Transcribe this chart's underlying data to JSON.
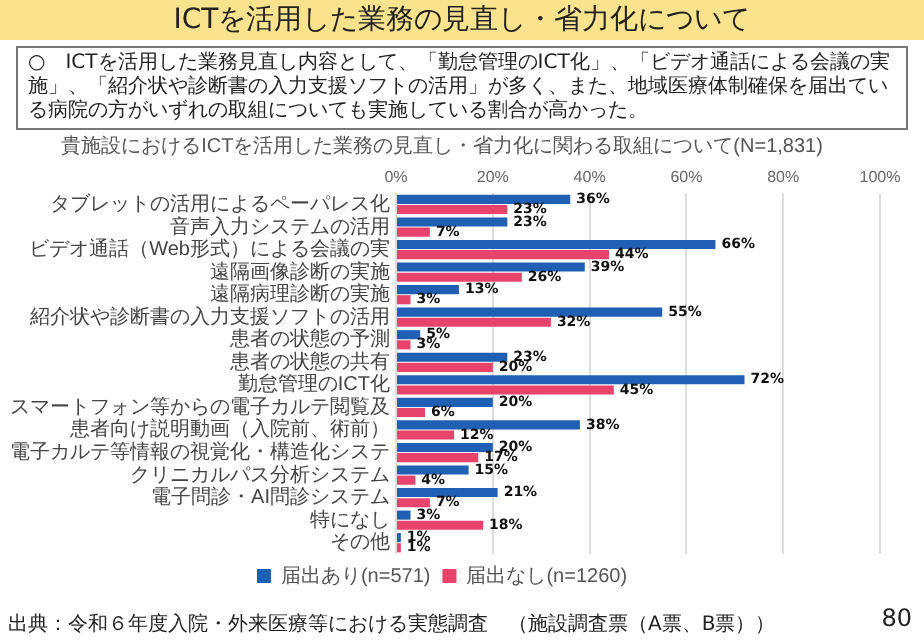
{
  "chart_data": {
    "type": "bar",
    "orientation": "horizontal",
    "title": "ICTを活用した業務の見直し・省力化について",
    "subtitle": "貴施設におけるICTを活用した業務の見直し・省力化に関わる取組について(N=1,831)",
    "categories": [
      "タブレットの活用によるペーパレス化",
      "音声入力システムの活用",
      "ビデオ通話（Web形式）による会議の実",
      "遠隔画像診断の実施",
      "遠隔病理診断の実施",
      "紹介状や診断書の入力支援ソフトの活用",
      "患者の状態の予測",
      "患者の状態の共有",
      "勤怠管理のICT化",
      "スマートフォン等からの電子カルテ閲覧及",
      "患者向け説明動画（入院前、術前）",
      "電子カルテ等情報の視覚化・構造化システ",
      "クリニカルパス分析システム",
      "電子問診・AI問診システム",
      "特になし",
      "その他"
    ],
    "series": [
      {
        "name": "届出あり(n=571)",
        "color": "#1f5fb4",
        "values": [
          36,
          23,
          66,
          39,
          13,
          55,
          5,
          23,
          72,
          20,
          38,
          20,
          15,
          21,
          3,
          1
        ],
        "value_labels": [
          "36%",
          "23%",
          "66%",
          "39%",
          "13%",
          "55%",
          "5%",
          "23%",
          "72%",
          "20%",
          "38%",
          "20%",
          "15%",
          "21%",
          "3%",
          "1%"
        ]
      },
      {
        "name": "届出なし(n=1260)",
        "color": "#e8436a",
        "values": [
          23,
          7,
          44,
          26,
          3,
          32,
          3,
          20,
          45,
          6,
          12,
          17,
          4,
          7,
          18,
          1
        ],
        "value_labels": [
          "23%",
          "7%",
          "44%",
          "26%",
          "3%",
          "32%",
          "3%",
          "20%",
          "45%",
          "6%",
          "12%",
          "17%",
          "4%",
          "7%",
          "18%",
          "1%"
        ]
      }
    ],
    "xlim": [
      0,
      100
    ],
    "xticks": [
      {
        "value": 0,
        "label": "0%"
      },
      {
        "value": 20,
        "label": "20%"
      },
      {
        "value": 40,
        "label": "40%"
      },
      {
        "value": 60,
        "label": "60%"
      },
      {
        "value": 80,
        "label": "80%"
      },
      {
        "value": 100,
        "label": "100%"
      }
    ],
    "grid": "x",
    "legend": "bottom",
    "annotations": [
      "○　ICTを活用した業務見直し内容として、「勤怠管理のICT化」、「ビデオ通話による会議の実施」、「紹介状や診断書の入力支援ソフトの活用」が多く、また、地域医療体制確保を届出ている病院の方がいずれの取組についても実施している割合が高かった。",
      "出典：令和６年度入院・外来医療等における実態調査　（施設調査票（A票、B票））",
      "80"
    ]
  }
}
